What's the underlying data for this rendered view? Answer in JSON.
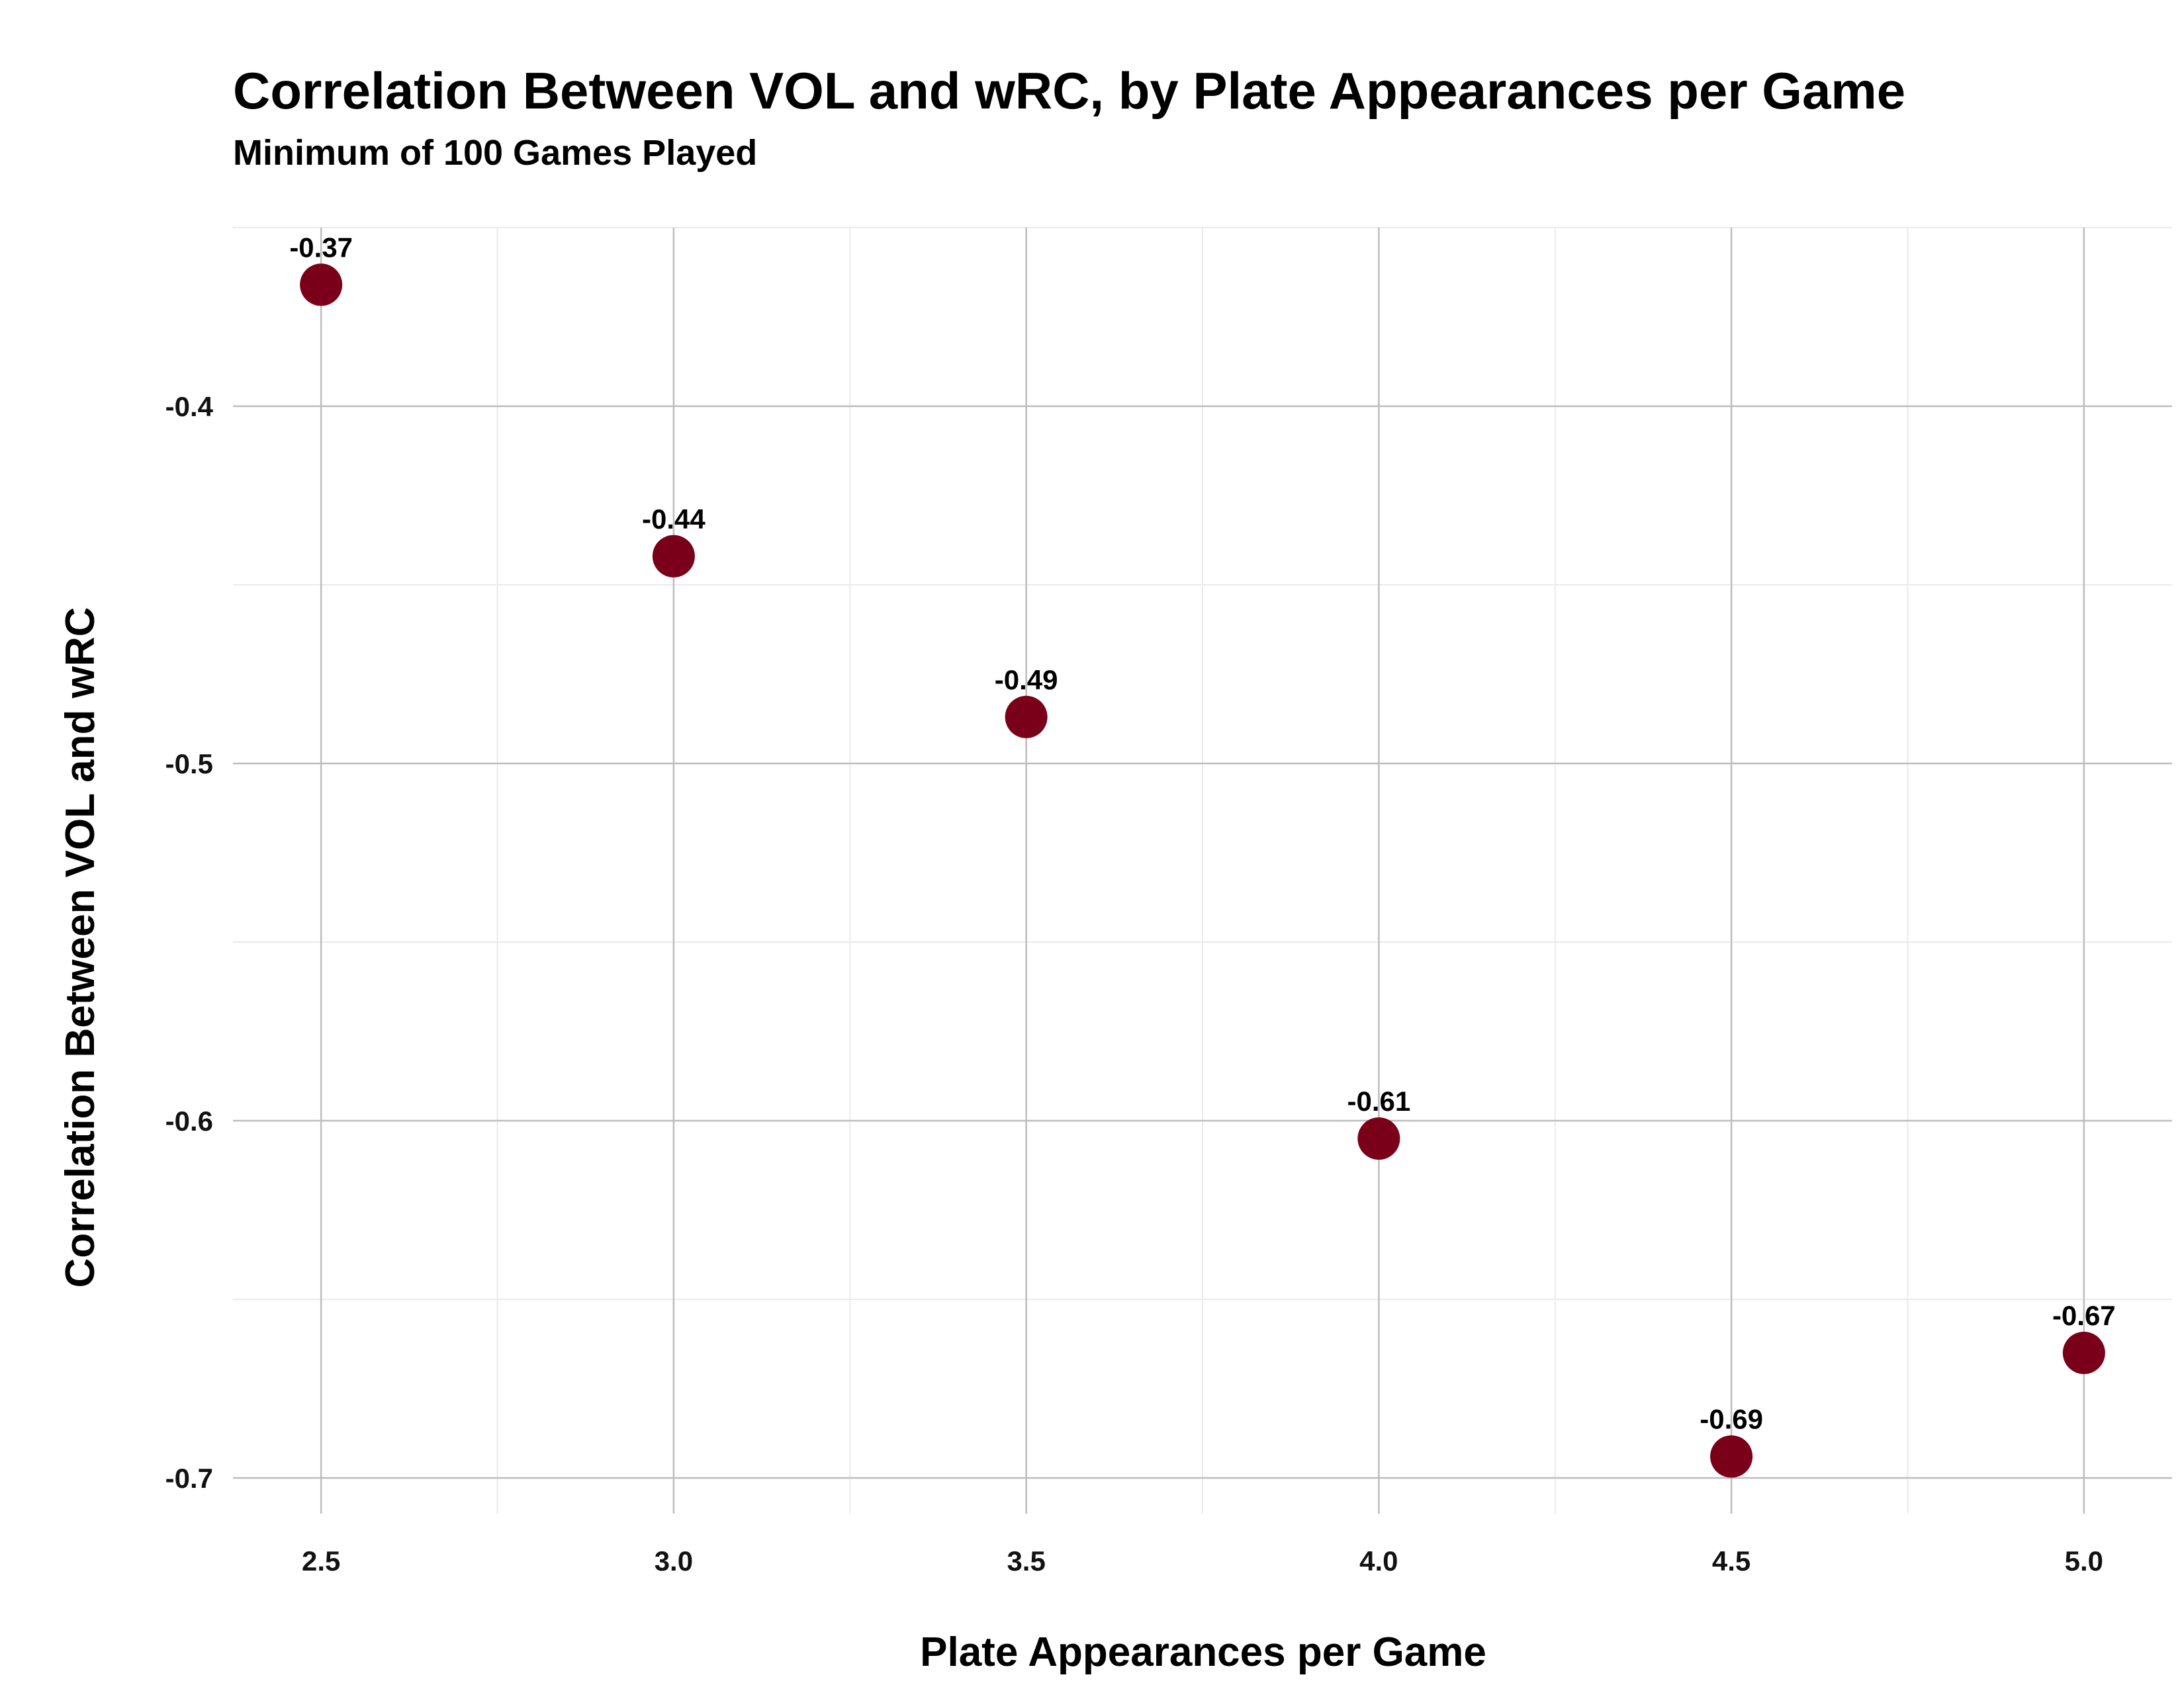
{
  "chart_data": {
    "type": "scatter",
    "title": "Correlation Between VOL and wRC, by Plate Appearances per Game",
    "subtitle": "Minimum of 100 Games Played",
    "xlabel": "Plate Appearances per Game",
    "ylabel": "Correlation Between VOL and wRC",
    "x": [
      2.5,
      3.0,
      3.5,
      4.0,
      4.5,
      5.0
    ],
    "y": [
      -0.366,
      -0.442,
      -0.487,
      -0.605,
      -0.694,
      -0.665
    ],
    "labels": [
      "-0.37",
      "-0.44",
      "-0.49",
      "-0.61",
      "-0.69",
      "-0.67"
    ],
    "xticks": [
      2.5,
      3.0,
      3.5,
      4.0,
      4.5,
      5.0
    ],
    "xtick_labels": [
      "2.5",
      "3.0",
      "3.5",
      "4.0",
      "4.5",
      "5.0"
    ],
    "yticks": [
      -0.4,
      -0.5,
      -0.6,
      -0.7
    ],
    "ytick_labels": [
      "-0.4",
      "-0.5",
      "-0.6",
      "-0.7"
    ],
    "xlim": [
      2.375,
      5.125
    ],
    "ylim": [
      -0.71,
      -0.35
    ],
    "grid": true,
    "marker_color": "#7a0019",
    "legend": "none"
  }
}
